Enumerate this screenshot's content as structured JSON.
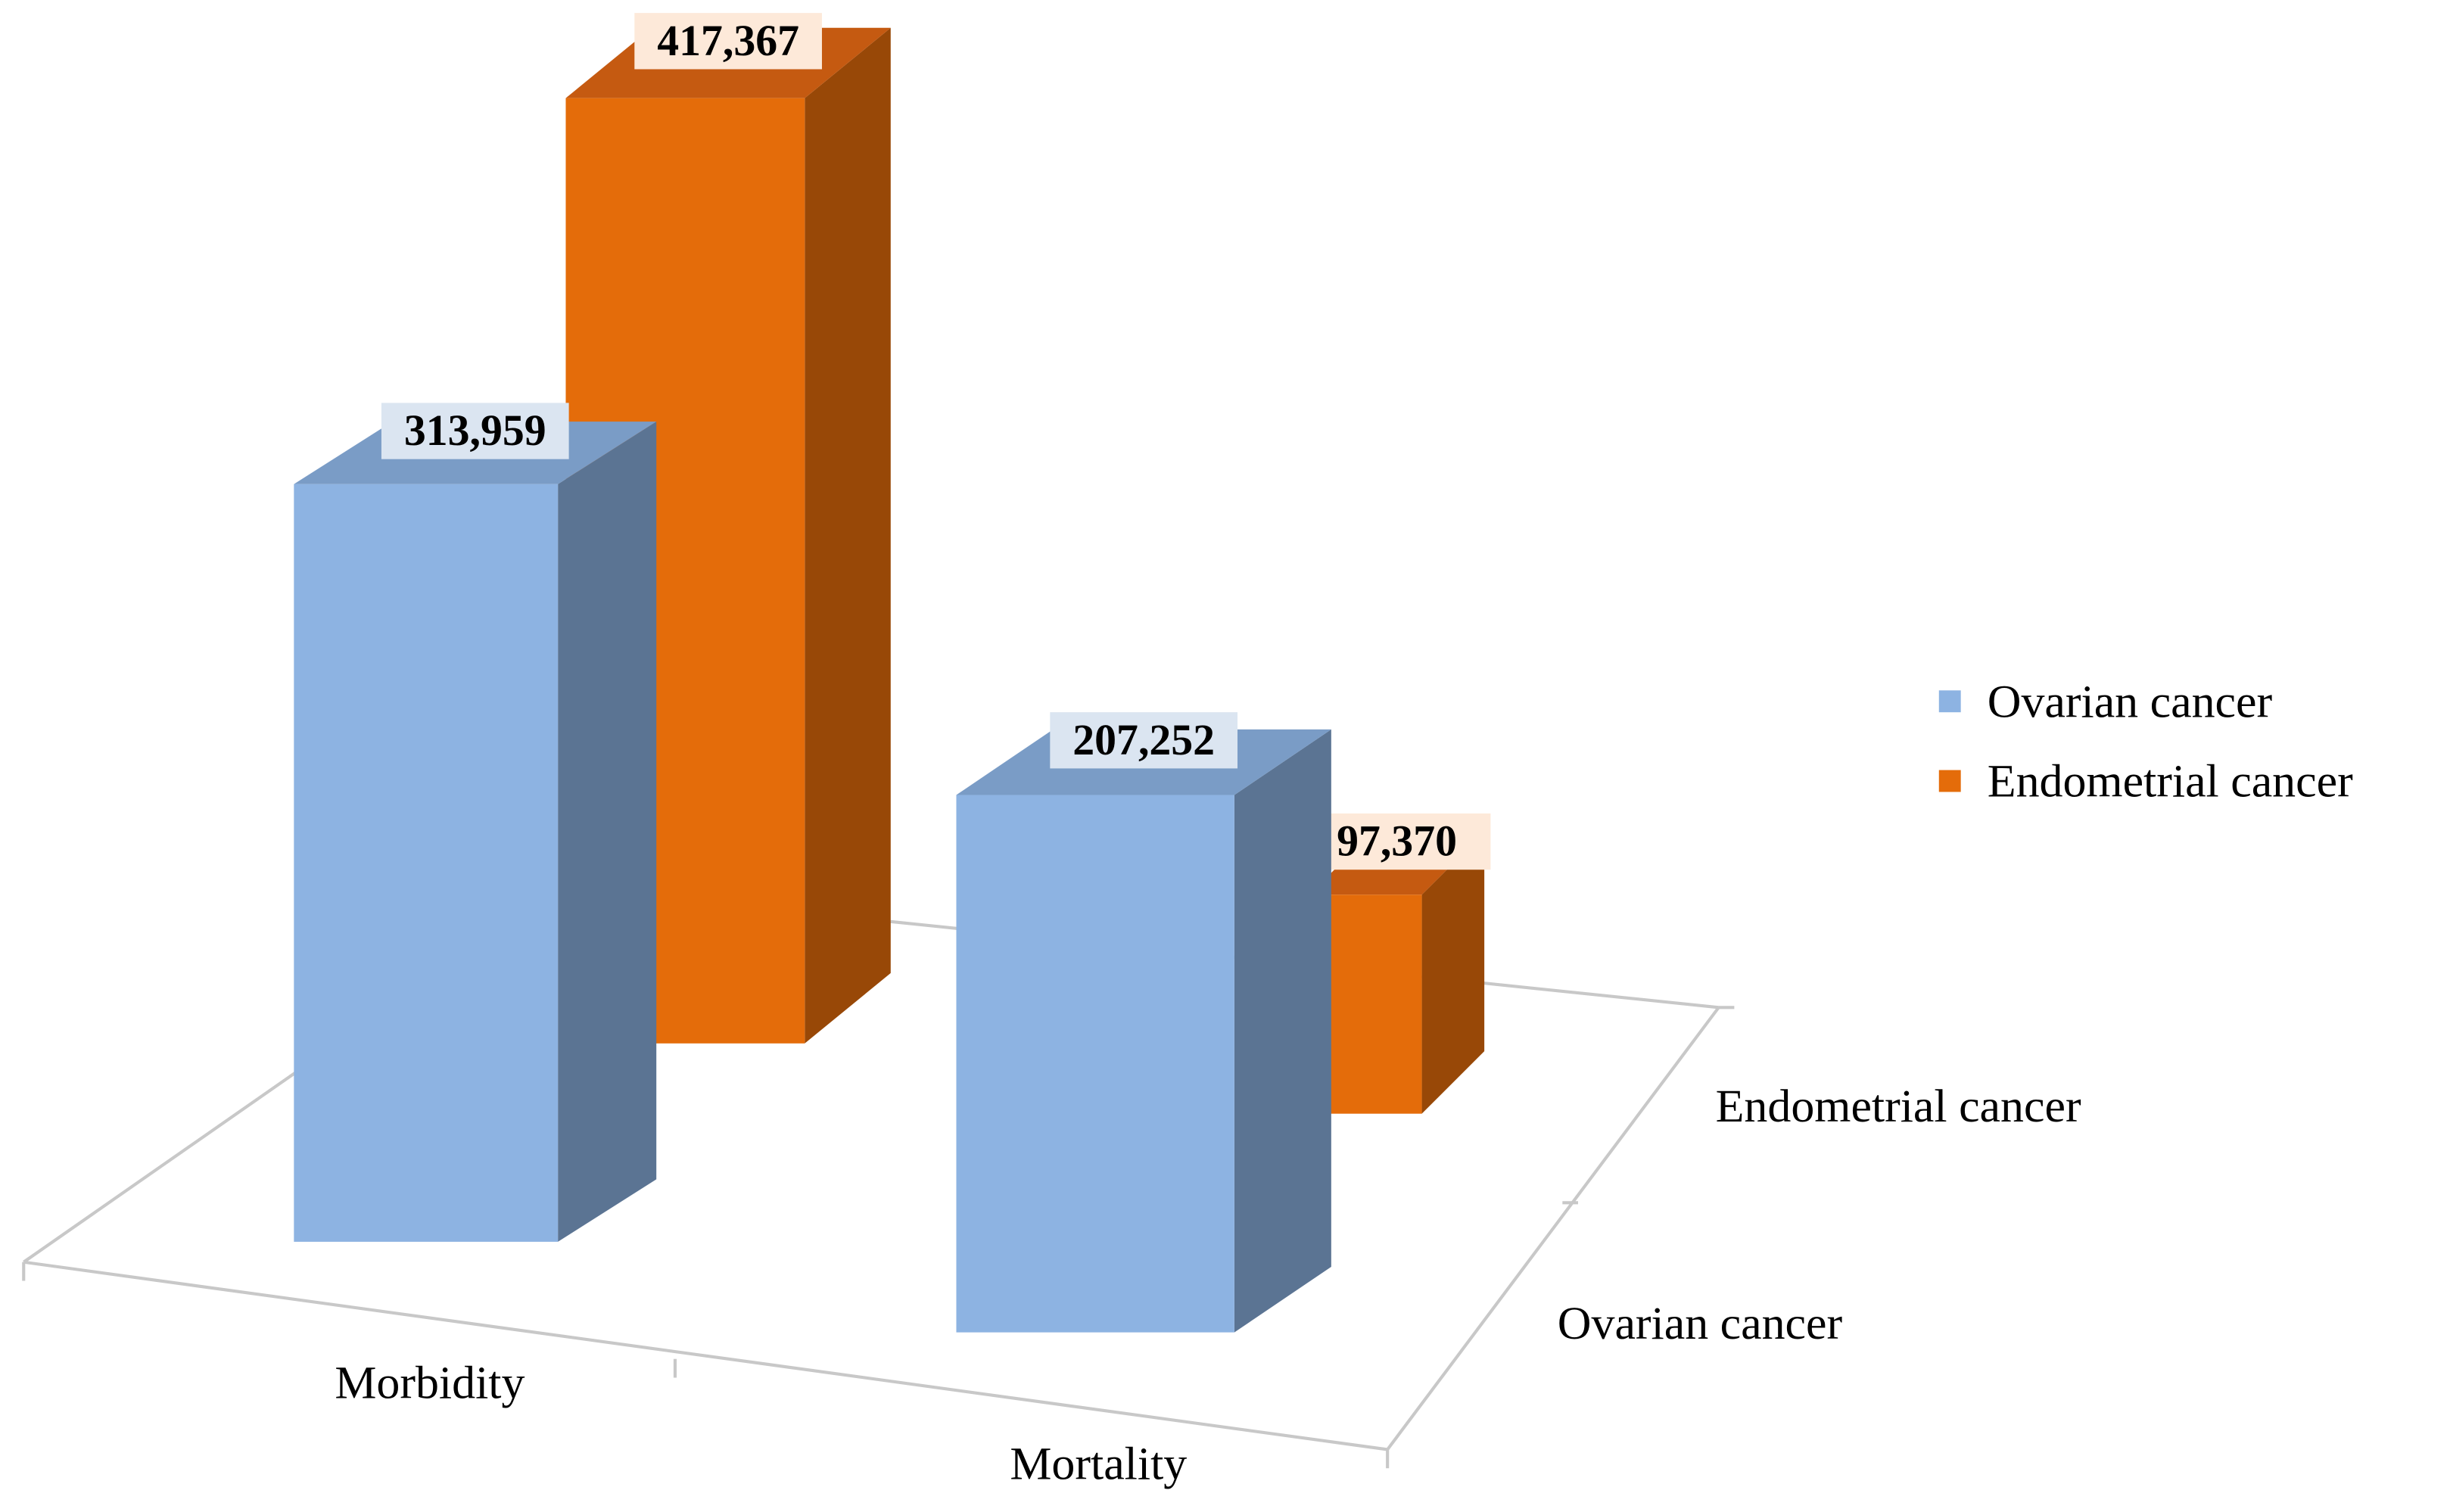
{
  "chart_data": {
    "type": "bar3d",
    "categories": [
      "Morbidity",
      "Mortality"
    ],
    "series": [
      {
        "name": "Ovarian cancer",
        "color": "#8db3e2",
        "values": [
          313959,
          207252
        ],
        "value_labels": [
          "313,959",
          "207,252"
        ]
      },
      {
        "name": "Endometrial cancer",
        "color": "#e46c0a",
        "values": [
          417367,
          97370
        ],
        "value_labels": [
          "417,367",
          "97,370"
        ]
      }
    ],
    "legend": "right"
  }
}
